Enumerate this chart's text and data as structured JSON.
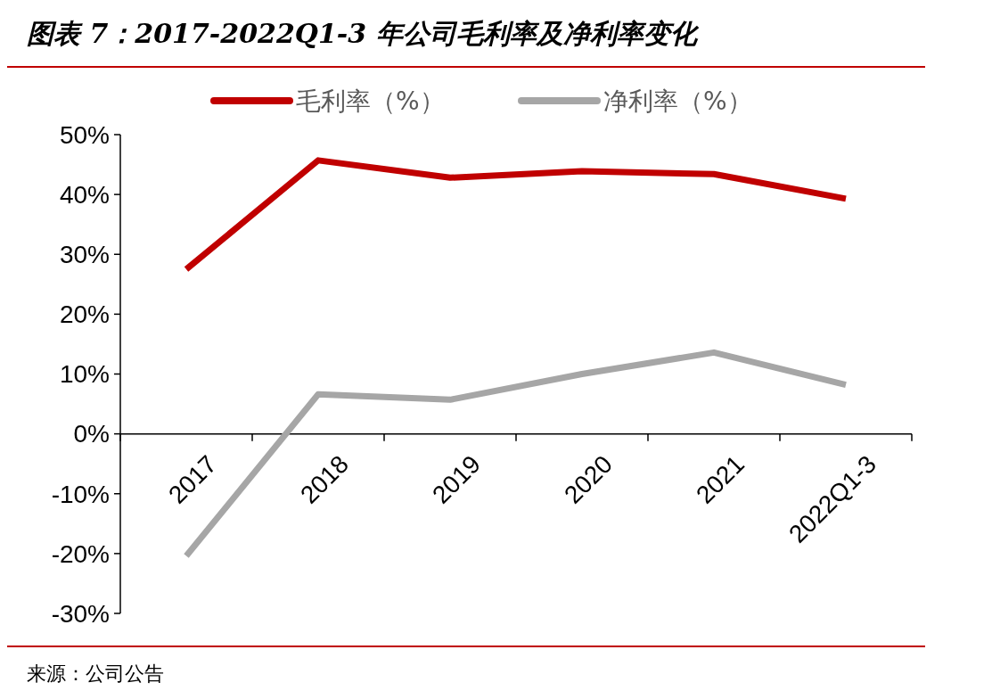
{
  "chart_data": {
    "type": "line",
    "title": "图表 7：2017-2022Q1-3 年公司毛利率及净利率变化",
    "categories": [
      "2017",
      "2018",
      "2019",
      "2020",
      "2021",
      "2022Q1-3"
    ],
    "series": [
      {
        "name": "毛利率（%）",
        "color": "#c00000",
        "values": [
          27.5,
          45.7,
          42.8,
          43.9,
          43.4,
          39.3
        ]
      },
      {
        "name": "净利率（%）",
        "color": "#a6a6a6",
        "values": [
          -20.4,
          6.6,
          5.7,
          10.0,
          13.6,
          8.2
        ]
      }
    ],
    "ylim": [
      -30,
      50
    ],
    "yticks": [
      {
        "value": -30,
        "label": "-30%"
      },
      {
        "value": -20,
        "label": "-20%"
      },
      {
        "value": -10,
        "label": "-10%"
      },
      {
        "value": 0,
        "label": "0%"
      },
      {
        "value": 10,
        "label": "10%"
      },
      {
        "value": 20,
        "label": "20%"
      },
      {
        "value": 30,
        "label": "30%"
      },
      {
        "value": 40,
        "label": "40%"
      },
      {
        "value": 50,
        "label": "50%"
      }
    ],
    "legend": "top",
    "grid": false,
    "marker": "none",
    "line_style": "solid",
    "annotations": [
      "来源：公司公告"
    ]
  }
}
